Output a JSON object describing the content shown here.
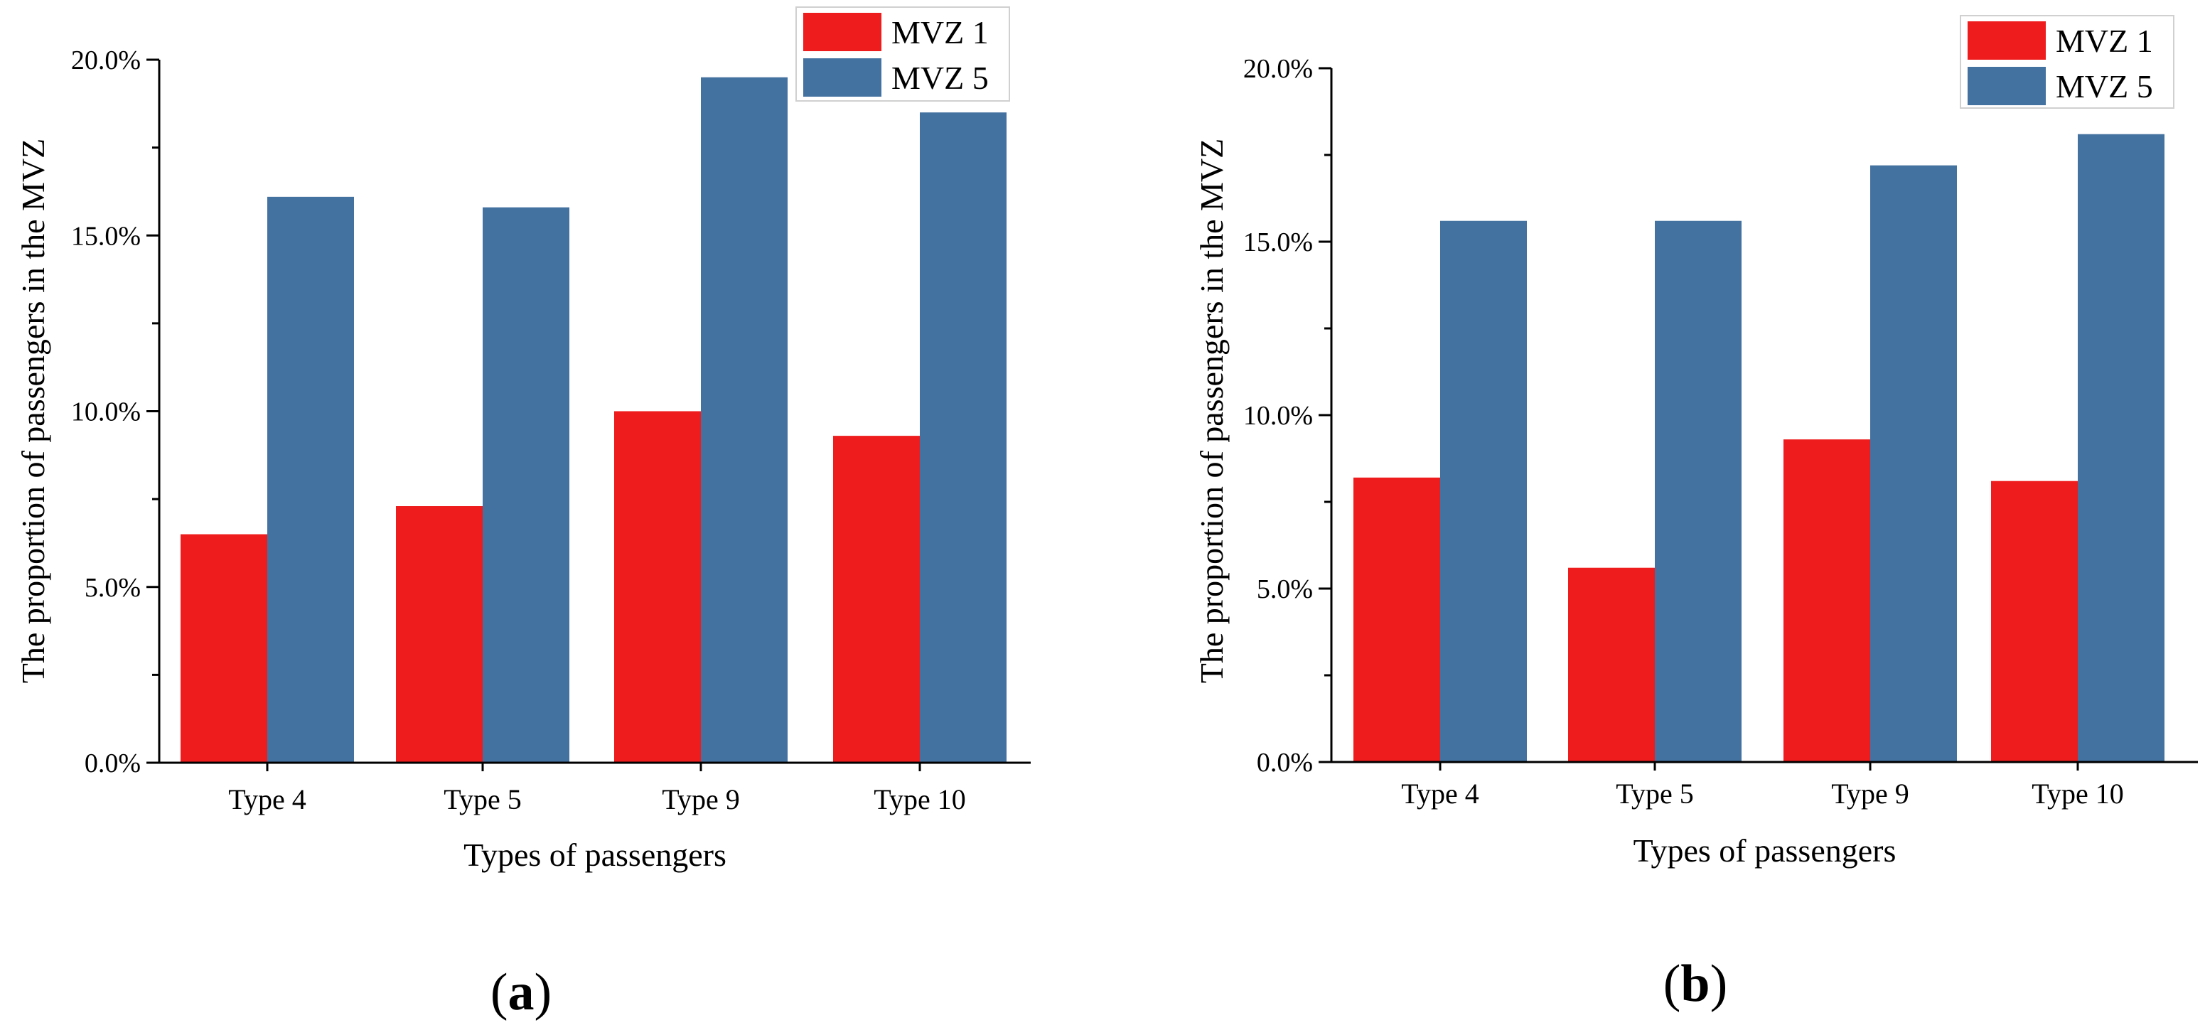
{
  "chart_data": [
    {
      "type": "bar",
      "panel": "a",
      "categories": [
        "Type 4",
        "Type 5",
        "Type 9",
        "Type 10"
      ],
      "series": [
        {
          "name": "MVZ 1",
          "color": "#ee1c1c",
          "values": [
            6.5,
            7.3,
            10.0,
            9.3
          ]
        },
        {
          "name": "MVZ 5",
          "color": "#4472a0",
          "values": [
            16.1,
            15.8,
            19.5,
            18.5
          ]
        }
      ],
      "title": "",
      "xlabel": "Types of passengers",
      "ylabel": "The proportion of passengers in the MVZ",
      "ylim": [
        0,
        20
      ],
      "yticks": [
        "0.0%",
        "5.0%",
        "10.0%",
        "15.0%",
        "20.0%"
      ],
      "legend": "top-right"
    },
    {
      "type": "bar",
      "panel": "b",
      "categories": [
        "Type 4",
        "Type 5",
        "Type 9",
        "Type 10"
      ],
      "series": [
        {
          "name": "MVZ 1",
          "color": "#ee1c1c",
          "values": [
            8.2,
            5.6,
            9.3,
            8.1
          ]
        },
        {
          "name": "MVZ 5",
          "color": "#4472a0",
          "values": [
            15.6,
            15.6,
            17.2,
            18.1
          ]
        }
      ],
      "title": "",
      "xlabel": "Types of passengers",
      "ylabel": "The proportion of passengers in the MVZ",
      "ylim": [
        0,
        20
      ],
      "yticks": [
        "0.0%",
        "5.0%",
        "10.0%",
        "15.0%",
        "20.0%"
      ],
      "legend": "top-right"
    }
  ],
  "captions": [
    {
      "open": "(",
      "letter": "a",
      "close": ")"
    },
    {
      "open": "(",
      "letter": "b",
      "close": ")"
    }
  ]
}
